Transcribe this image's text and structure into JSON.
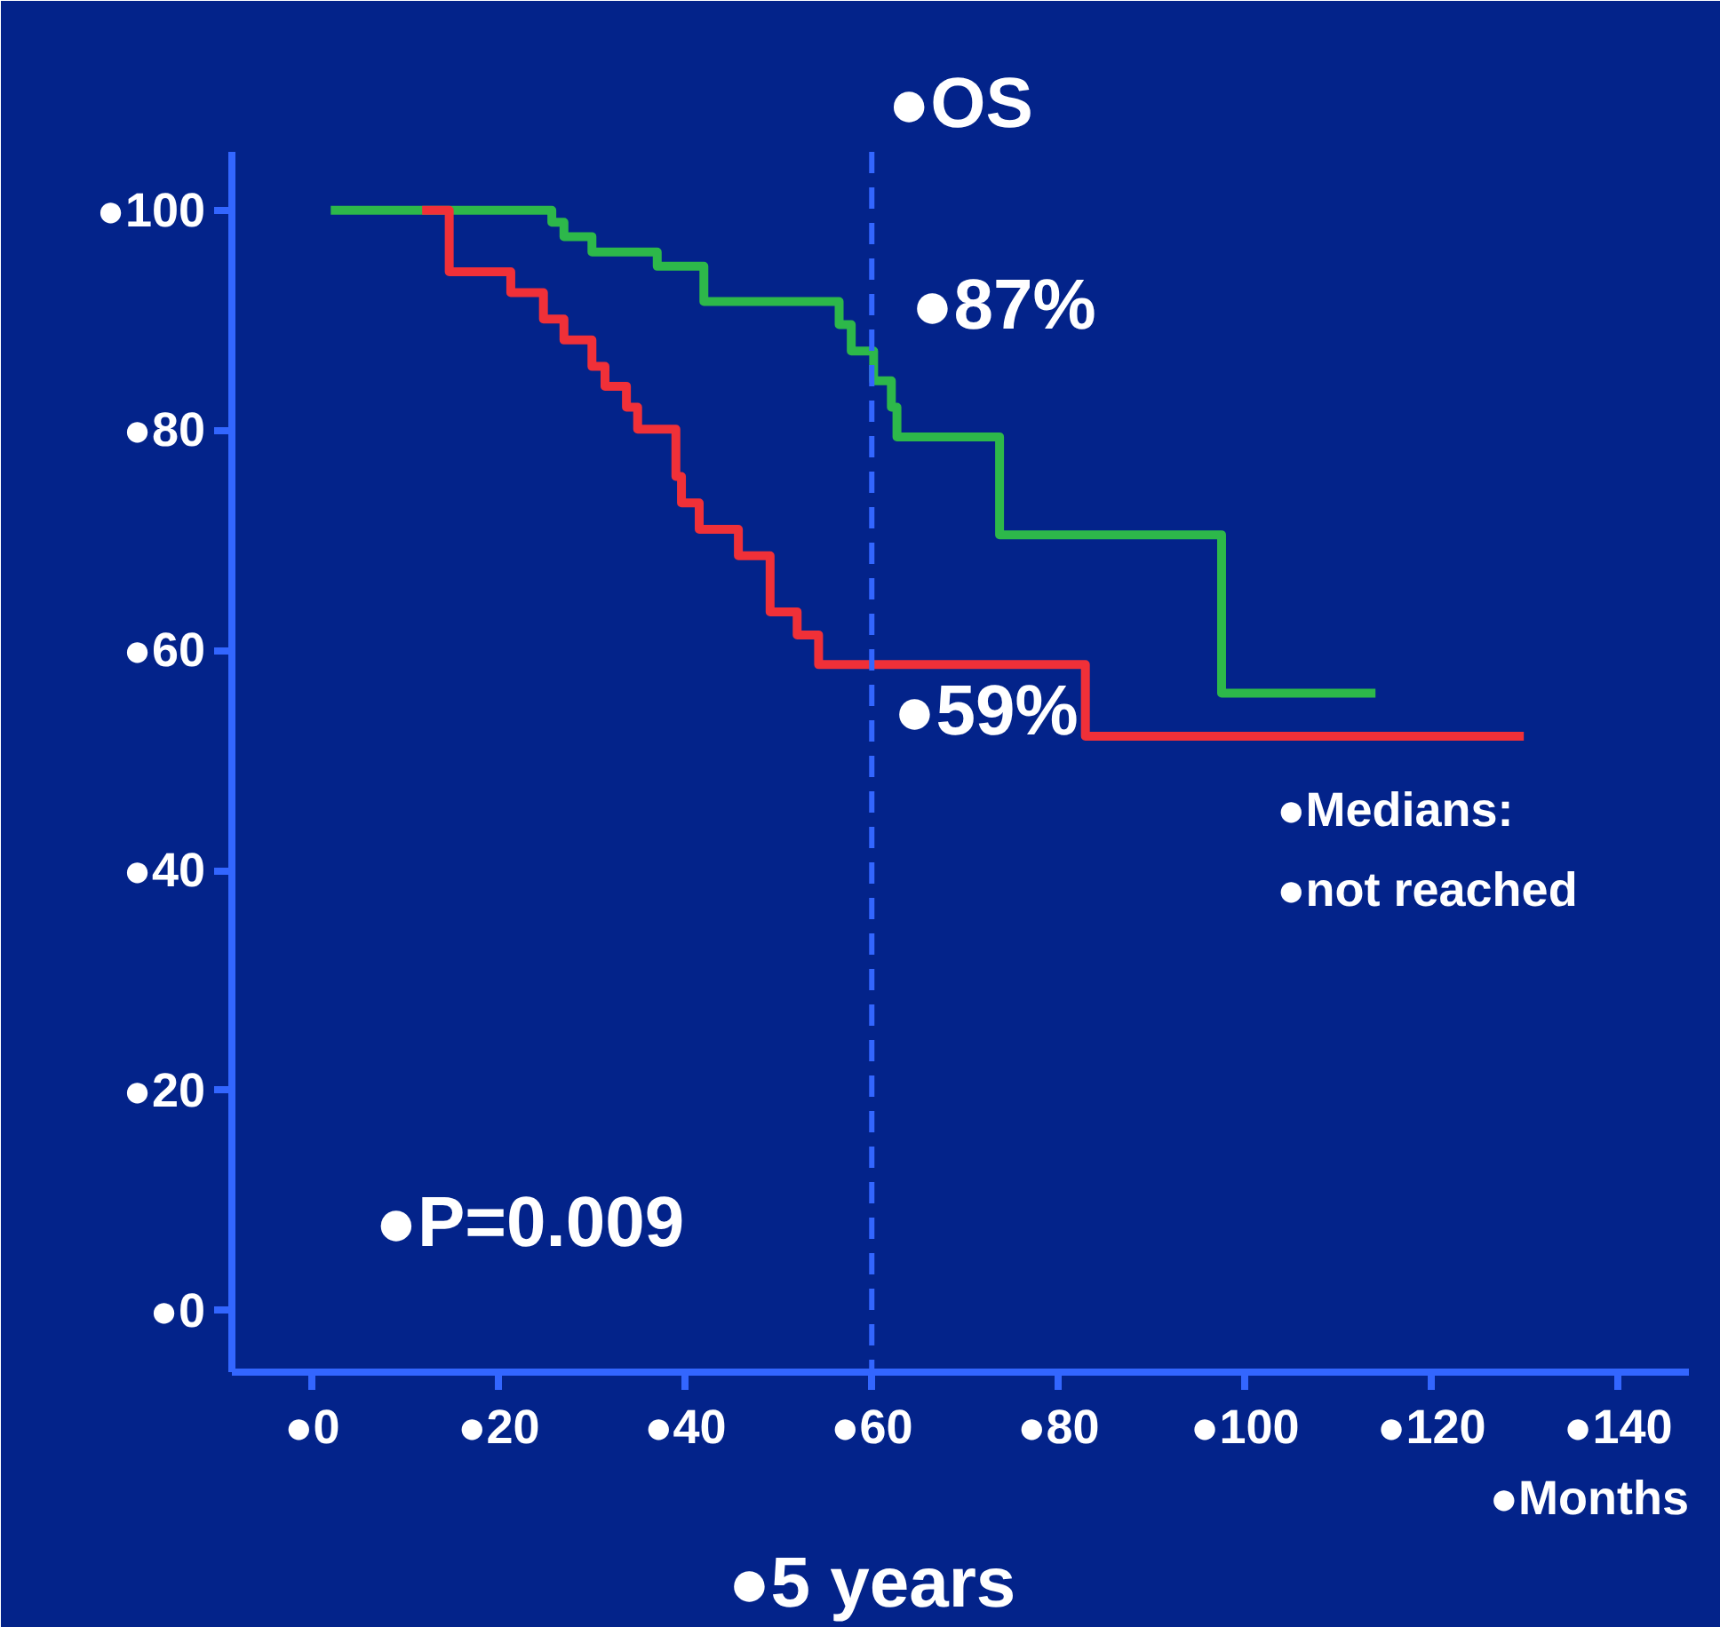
{
  "chart_data": {
    "type": "step",
    "title": "●OS",
    "xlabel": "●Months",
    "xlim": [
      -8.6,
      147.6
    ],
    "ylim": [
      -5.6,
      105.3
    ],
    "xticks": [
      {
        "value": 0,
        "label": "●0"
      },
      {
        "value": 20,
        "label": "●20"
      },
      {
        "value": 40,
        "label": "●40"
      },
      {
        "value": 60,
        "label": "●60"
      },
      {
        "value": 80,
        "label": "●80"
      },
      {
        "value": 100,
        "label": "●100"
      },
      {
        "value": 120,
        "label": "●120"
      },
      {
        "value": 140,
        "label": "●140"
      }
    ],
    "yticks": [
      {
        "value": 0,
        "label": "●0"
      },
      {
        "value": 20,
        "label": "●20"
      },
      {
        "value": 40,
        "label": "●40"
      },
      {
        "value": 60,
        "label": "●60"
      },
      {
        "value": 80,
        "label": "●80"
      },
      {
        "value": 100,
        "label": "●100"
      }
    ],
    "series": [
      {
        "color": "#2db84a",
        "x": [
          2,
          25.7,
          27,
          30,
          37,
          42,
          56.5,
          57.8,
          60.2,
          62.1,
          62.7,
          73.7,
          97.5,
          114
        ],
        "values": [
          100,
          98.9,
          97.6,
          96.2,
          94.9,
          91.7,
          89.6,
          87.2,
          84.5,
          82.1,
          79.4,
          70.5,
          56.1,
          56.1
        ]
      },
      {
        "color": "#f03038",
        "x": [
          11.8,
          14.7,
          21.3,
          24.8,
          27,
          30,
          31.4,
          33.7,
          34.9,
          39,
          39.6,
          41.5,
          45.7,
          49.1,
          52,
          54.3,
          82.9,
          129.9
        ],
        "values": [
          100,
          94.4,
          92.5,
          90.1,
          88.2,
          85.8,
          84,
          82.1,
          80.1,
          75.8,
          73.4,
          71,
          68.6,
          63.5,
          61.4,
          58.7,
          52.2,
          52.2
        ]
      }
    ],
    "ref_lines": [
      {
        "axis": "x",
        "value": 60,
        "label": "●5 years",
        "color": "#3366ff",
        "line_style": "dashed"
      }
    ],
    "annotations": [
      {
        "text": "●87%",
        "x": 60,
        "y": 87
      },
      {
        "text": "●59%",
        "x": 60,
        "y": 59
      },
      "●Medians:",
      "●not reached",
      "●P=0.009"
    ],
    "grid": false,
    "marker": "none",
    "line_style": "solid"
  }
}
